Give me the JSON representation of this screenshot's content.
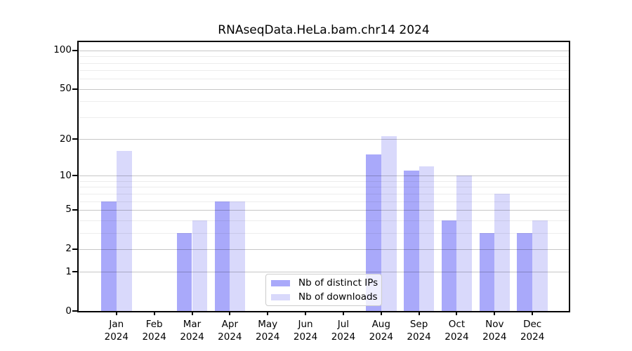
{
  "title": "RNAseqData.HeLa.bam.chr14 2024",
  "legend": {
    "items": [
      {
        "label": "Nb of distinct IPs",
        "color": "#a9a9fa"
      },
      {
        "label": "Nb of downloads",
        "color": "#d9d9fb"
      }
    ]
  },
  "chart_data": {
    "type": "bar",
    "title": "RNAseqData.HeLa.bam.chr14 2024",
    "categories": [
      "Jan 2024",
      "Feb 2024",
      "Mar 2024",
      "Apr 2024",
      "May 2024",
      "Jun 2024",
      "Jul 2024",
      "Aug 2024",
      "Sep 2024",
      "Oct 2024",
      "Nov 2024",
      "Dec 2024"
    ],
    "x_tick_labels": [
      {
        "month": "Jan",
        "year": "2024"
      },
      {
        "month": "Feb",
        "year": "2024"
      },
      {
        "month": "Mar",
        "year": "2024"
      },
      {
        "month": "Apr",
        "year": "2024"
      },
      {
        "month": "May",
        "year": "2024"
      },
      {
        "month": "Jun",
        "year": "2024"
      },
      {
        "month": "Jul",
        "year": "2024"
      },
      {
        "month": "Aug",
        "year": "2024"
      },
      {
        "month": "Sep",
        "year": "2024"
      },
      {
        "month": "Oct",
        "year": "2024"
      },
      {
        "month": "Nov",
        "year": "2024"
      },
      {
        "month": "Dec",
        "year": "2024"
      }
    ],
    "series": [
      {
        "name": "Nb of distinct IPs",
        "color": "#a9a9fa",
        "values": [
          6,
          0,
          3,
          6,
          0,
          0,
          0,
          15,
          11,
          4,
          3,
          3
        ]
      },
      {
        "name": "Nb of downloads",
        "color": "#d9d9fb",
        "values": [
          16,
          0,
          4,
          6,
          0,
          0,
          0,
          21,
          12,
          10,
          7,
          4
        ]
      }
    ],
    "y_axis": {
      "scale": "log1p",
      "tick_labels": [
        "100",
        "50",
        "20",
        "10",
        "5",
        "2",
        "1",
        "0"
      ],
      "tick_values": [
        100,
        50,
        20,
        10,
        5,
        2,
        1,
        0
      ],
      "minor_gridlines": [
        3,
        4,
        6,
        7,
        8,
        9,
        30,
        40,
        60,
        70,
        80,
        90
      ],
      "axis_max": 116
    },
    "grid": "horizontal",
    "legend_position": "inside-bottom-center"
  }
}
